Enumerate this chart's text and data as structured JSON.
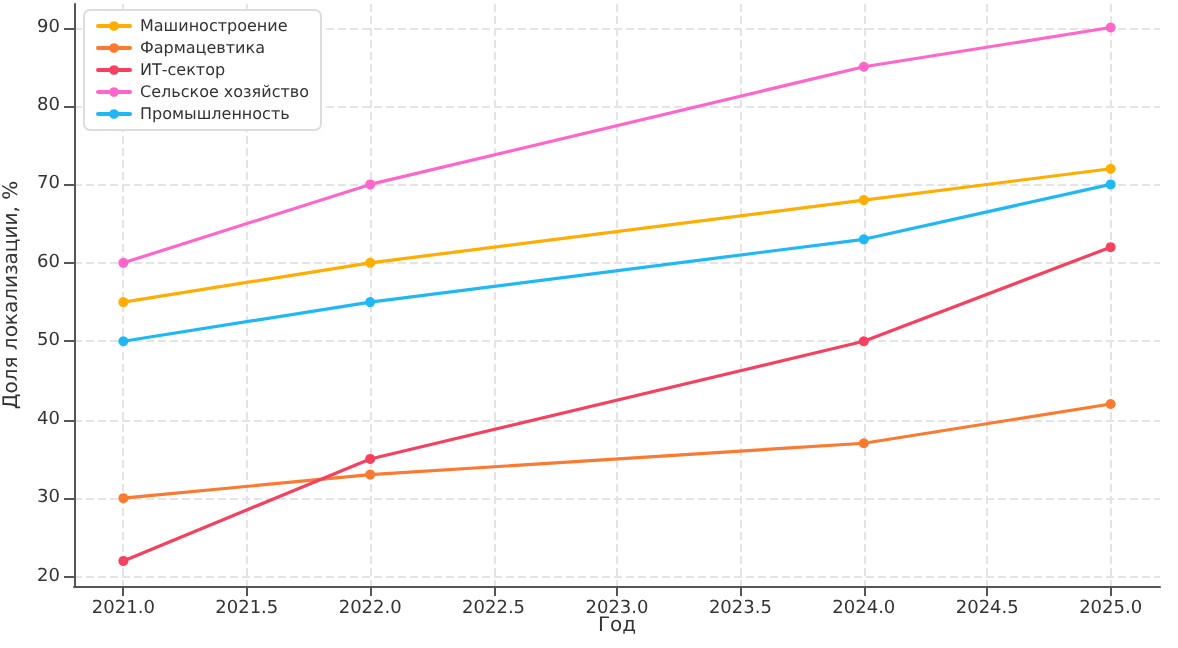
{
  "chart_data": {
    "type": "line",
    "xlabel": "Год",
    "ylabel": "Доля локализации, %",
    "x": [
      2021,
      2022,
      2024,
      2025
    ],
    "series": [
      {
        "name": "Машиностроение",
        "color": "#ffad00",
        "values": [
          55,
          60,
          68,
          72
        ]
      },
      {
        "name": "Фармацевтика",
        "color": "#f97a30",
        "values": [
          30,
          33,
          37,
          42
        ]
      },
      {
        "name": "ИТ-сектор",
        "color": "#f5405f",
        "values": [
          22,
          35,
          50,
          62
        ]
      },
      {
        "name": "Сельское хозяйство",
        "color": "#ff66cc",
        "values": [
          60,
          70,
          85,
          90
        ]
      },
      {
        "name": "Промышленность",
        "color": "#1fb8f5",
        "values": [
          50,
          55,
          63,
          70
        ]
      }
    ],
    "xlim": [
      2020.8,
      2025.2
    ],
    "xticks": [
      {
        "value": 2021,
        "label": "2021.0"
      },
      {
        "value": 2021.5,
        "label": "2021.5"
      },
      {
        "value": 2022,
        "label": "2022.0"
      },
      {
        "value": 2022.5,
        "label": "2022.5"
      },
      {
        "value": 2023,
        "label": "2023.0"
      },
      {
        "value": 2023.5,
        "label": "2023.5"
      },
      {
        "value": 2024,
        "label": "2024.0"
      },
      {
        "value": 2024.5,
        "label": "2024.5"
      },
      {
        "value": 2025,
        "label": "2025.0"
      }
    ],
    "ylim": [
      18.8,
      93
    ],
    "yticks": [
      20,
      30,
      40,
      50,
      60,
      70,
      80,
      90
    ],
    "grid": true,
    "legend": "top left",
    "marker": "circle",
    "line_style": "solid"
  }
}
